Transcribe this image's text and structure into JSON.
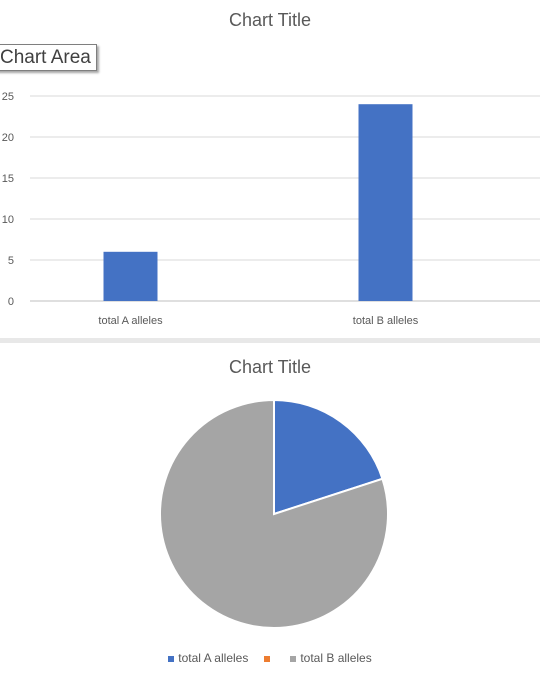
{
  "charts": {
    "bar": {
      "title": "Chart Title",
      "tooltip": "Chart Area"
    },
    "pie": {
      "title": "Chart Title"
    }
  },
  "chart_data": [
    {
      "type": "bar",
      "title": "Chart Title",
      "categories": [
        "total A alleles",
        "total B alleles"
      ],
      "values": [
        6,
        24
      ],
      "ylim": [
        0,
        25
      ],
      "yticks": [
        0,
        5,
        10,
        15,
        20,
        25
      ],
      "xlabel": "",
      "ylabel": "",
      "grid": true,
      "color": "#4472C4"
    },
    {
      "type": "pie",
      "title": "Chart Title",
      "labels": [
        "total A alleles",
        "total B alleles"
      ],
      "values": [
        6,
        24
      ],
      "colors": [
        "#4472C4",
        "#A5A5A5"
      ],
      "legend": {
        "position": "bottom",
        "entries": [
          {
            "label": "total A alleles",
            "color": "#4472C4"
          },
          {
            "label": "",
            "color": "#ED7D31"
          },
          {
            "label": "total B alleles",
            "color": "#A5A5A5"
          }
        ]
      }
    }
  ]
}
